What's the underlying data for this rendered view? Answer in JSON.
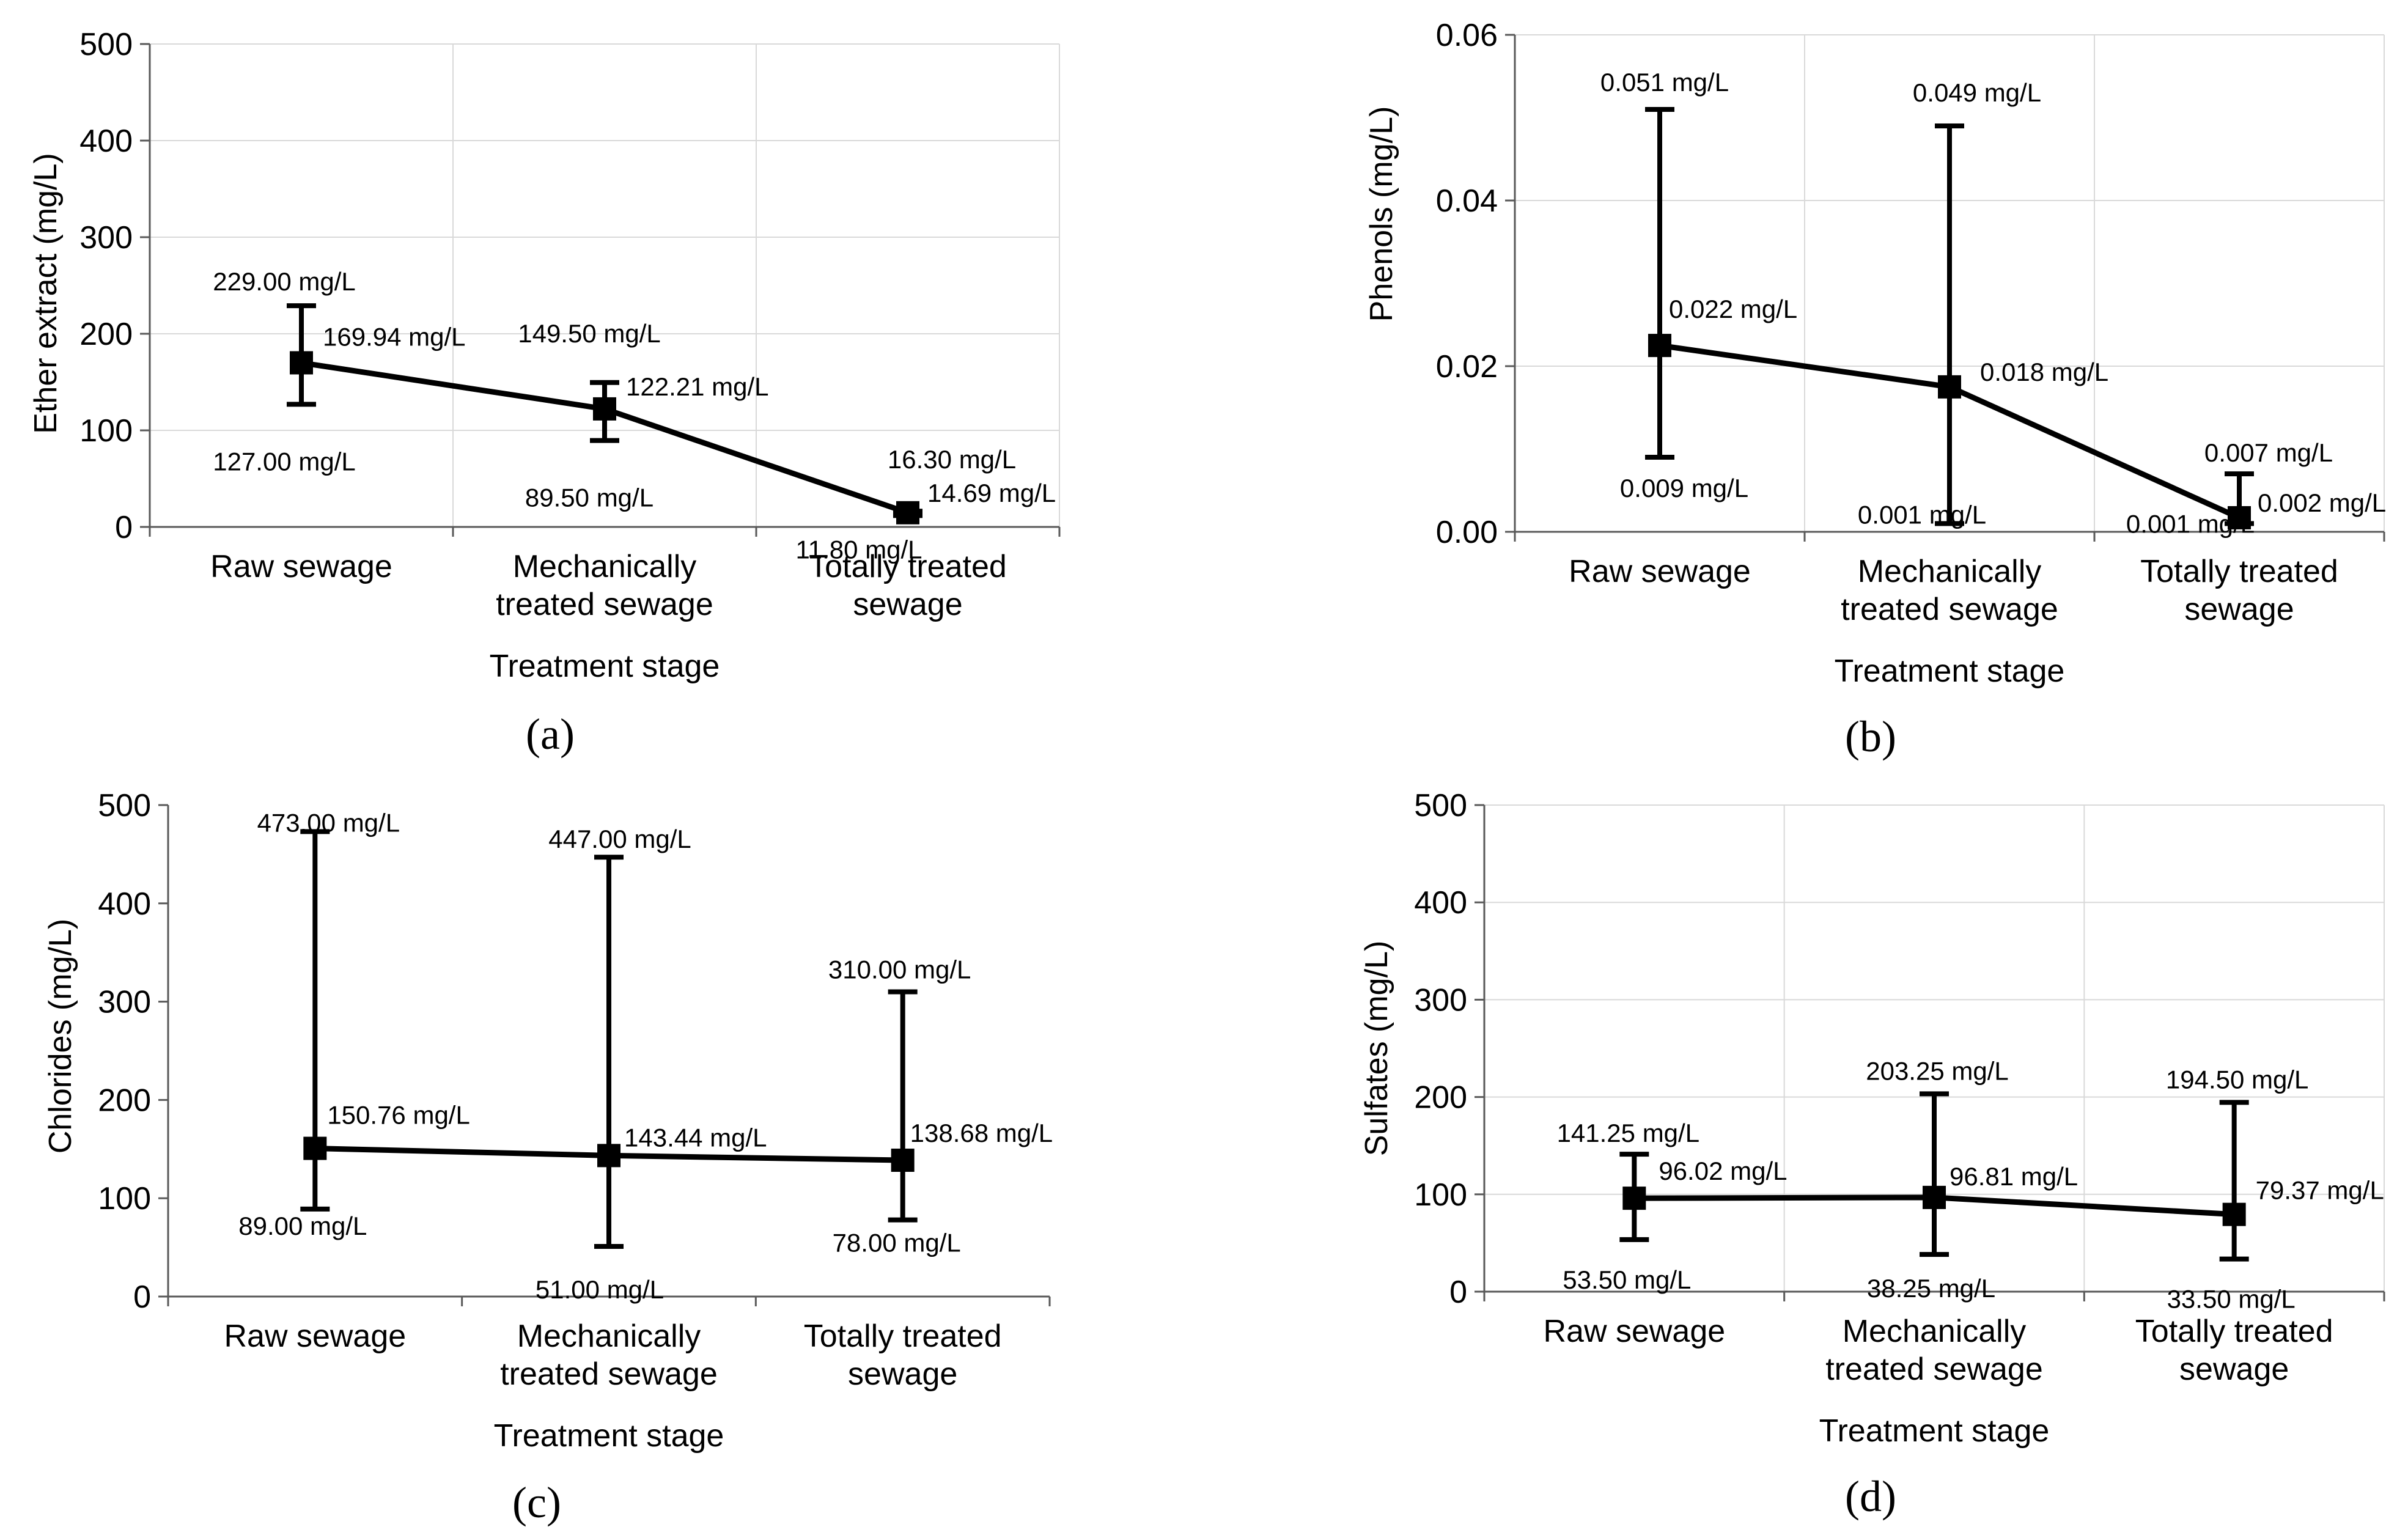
{
  "colors": {
    "line": "#000000",
    "grid": "#d9d9d9",
    "axis": "#595959",
    "text": "#000000"
  },
  "chart_data": [
    {
      "type": "line",
      "panel_label": "(a)",
      "categories": [
        "Raw sewage",
        "Mechanically treated sewage",
        "Totally treated sewage"
      ],
      "category_lines": [
        [
          "Raw sewage"
        ],
        [
          "Mechanically",
          "treated sewage"
        ],
        [
          "Totally treated",
          "sewage"
        ]
      ],
      "xlabel": "Treatment stage",
      "ylabel": "Ether extract (mg/L)",
      "ylim": [
        0,
        500
      ],
      "yticks": [
        0,
        100,
        200,
        300,
        400,
        500
      ],
      "ytick_labels": [
        "0",
        "100",
        "200",
        "300",
        "400",
        "500"
      ],
      "grid": true,
      "series": [
        {
          "name": "Mean",
          "values": [
            169.94,
            122.21,
            14.69
          ],
          "max": [
            229.0,
            149.5,
            16.3
          ],
          "min": [
            127.0,
            89.5,
            11.8
          ],
          "value_labels": [
            "169.94 mg/L",
            "122.21 mg/L",
            "14.69 mg/L"
          ],
          "max_labels": [
            "229.00 mg/L",
            "149.50 mg/L",
            "16.30 mg/L"
          ],
          "min_labels": [
            "127.00 mg/L",
            "89.50 mg/L",
            "11.80 mg/L"
          ]
        }
      ]
    },
    {
      "type": "line",
      "panel_label": "(b)",
      "categories": [
        "Raw sewage",
        "Mechanically treated sewage",
        "Totally treated sewage"
      ],
      "category_lines": [
        [
          "Raw sewage"
        ],
        [
          "Mechanically",
          "treated sewage"
        ],
        [
          "Totally treated",
          "sewage"
        ]
      ],
      "xlabel": "Treatment stage",
      "ylabel": "Phenols (mg/L)",
      "ylim": [
        0,
        0.06
      ],
      "yticks": [
        0,
        0.02,
        0.04,
        0.06
      ],
      "ytick_labels": [
        "0.00",
        "0.02",
        "0.04",
        "0.06"
      ],
      "grid": true,
      "series": [
        {
          "name": "Mean",
          "values": [
            0.0225,
            0.0175,
            0.0017
          ],
          "max": [
            0.051,
            0.049,
            0.007
          ],
          "min": [
            0.009,
            0.001,
            0.001
          ],
          "value_labels": [
            "0.022 mg/L",
            "0.018 mg/L",
            "0.002 mg/L"
          ],
          "max_labels": [
            "0.051 mg/L",
            "0.049 mg/L",
            "0.007 mg/L"
          ],
          "min_labels": [
            "0.009 mg/L",
            "0.001 mg/L",
            "0.001 mg/L"
          ]
        }
      ]
    },
    {
      "type": "line",
      "panel_label": "(c)",
      "categories": [
        "Raw sewage",
        "Mechanically treated sewage",
        "Totally treated sewage"
      ],
      "category_lines": [
        [
          "Raw sewage"
        ],
        [
          "Mechanically",
          "treated sewage"
        ],
        [
          "Totally treated",
          "sewage"
        ]
      ],
      "xlabel": "Treatment stage",
      "ylabel": "Chlorides (mg/L)",
      "ylim": [
        0,
        500
      ],
      "yticks": [
        0,
        100,
        200,
        300,
        400,
        500
      ],
      "ytick_labels": [
        "0",
        "100",
        "200",
        "300",
        "400",
        "500"
      ],
      "grid": false,
      "series": [
        {
          "name": "Mean",
          "values": [
            150.76,
            143.44,
            138.68
          ],
          "max": [
            473.0,
            447.0,
            310.0
          ],
          "min": [
            89.0,
            51.0,
            78.0
          ],
          "value_labels": [
            "150.76 mg/L",
            "143.44 mg/L",
            "138.68 mg/L"
          ],
          "max_labels": [
            "473.00 mg/L",
            "447.00 mg/L",
            "310.00 mg/L"
          ],
          "min_labels": [
            "89.00 mg/L",
            "51.00 mg/L",
            "78.00 mg/L"
          ]
        }
      ]
    },
    {
      "type": "line",
      "panel_label": "(d)",
      "categories": [
        "Raw sewage",
        "Mechanically treated sewage",
        "Totally treated sewage"
      ],
      "category_lines": [
        [
          "Raw sewage"
        ],
        [
          "Mechanically",
          "treated sewage"
        ],
        [
          "Totally treated",
          "sewage"
        ]
      ],
      "xlabel": "Treatment stage",
      "ylabel": "Sulfates (mg/L)",
      "ylim": [
        0,
        500
      ],
      "yticks": [
        0,
        100,
        200,
        300,
        400,
        500
      ],
      "ytick_labels": [
        "0",
        "100",
        "200",
        "300",
        "400",
        "500"
      ],
      "grid": true,
      "series": [
        {
          "name": "Mean",
          "values": [
            96.02,
            96.81,
            79.37
          ],
          "max": [
            141.25,
            203.25,
            194.5
          ],
          "min": [
            53.5,
            38.25,
            33.5
          ],
          "value_labels": [
            "96.02 mg/L",
            "96.81 mg/L",
            "79.37 mg/L"
          ],
          "max_labels": [
            "141.25 mg/L",
            "203.25 mg/L",
            "194.50 mg/L"
          ],
          "min_labels": [
            "53.50 mg/L",
            "38.25 mg/L",
            "33.50 mg/L"
          ]
        }
      ]
    }
  ]
}
